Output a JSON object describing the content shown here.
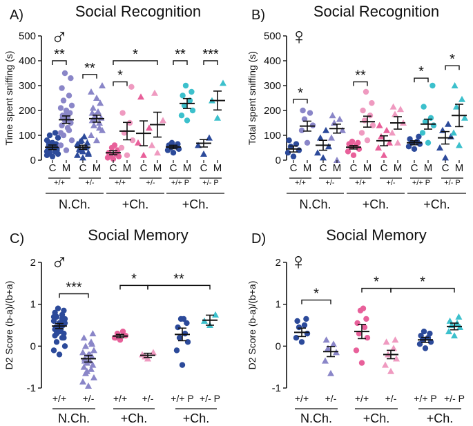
{
  "colors": {
    "navy": "#2c4a9a",
    "lavender": "#8a86c8",
    "pink": "#e8609a",
    "lightpink": "#ef9ac0",
    "cyan": "#3cc0cc",
    "black": "#111111"
  },
  "chart_data": [
    {
      "id": "A",
      "type": "scatter",
      "panel_label": "A)",
      "title": "Social Recognition",
      "sex_symbol": "♂",
      "ylabel": "Time  spent sniffing (s)",
      "ylim": [
        0,
        500
      ],
      "yticks": [
        0,
        100,
        200,
        300,
        400,
        500
      ],
      "columns": [
        {
          "label": "C",
          "shape": "circle",
          "color": "navy",
          "mean": 52,
          "sem": 9,
          "points": [
            15,
            20,
            25,
            30,
            35,
            40,
            45,
            50,
            55,
            60,
            65,
            70,
            80,
            90,
            100,
            110,
            30,
            40,
            50,
            60,
            70,
            45,
            55,
            35
          ]
        },
        {
          "label": "M",
          "shape": "circle",
          "color": "lavender",
          "mean": 163,
          "sem": 15,
          "points": [
            40,
            60,
            80,
            100,
            120,
            140,
            150,
            160,
            170,
            180,
            190,
            200,
            210,
            220,
            240,
            260,
            290,
            330,
            350,
            130,
            170,
            155,
            185,
            110
          ]
        },
        {
          "label": "C",
          "shape": "triangle",
          "color": "navy",
          "mean": 52,
          "sem": 8,
          "points": [
            10,
            20,
            30,
            40,
            50,
            60,
            70,
            80,
            95,
            45,
            55,
            35,
            65,
            25,
            75
          ]
        },
        {
          "label": "M",
          "shape": "triangle",
          "color": "lavender",
          "mean": 167,
          "sem": 14,
          "points": [
            80,
            100,
            120,
            140,
            150,
            160,
            170,
            180,
            195,
            210,
            230,
            250,
            275,
            300,
            165,
            130,
            190
          ]
        },
        {
          "label": "C",
          "shape": "circle",
          "color": "pink",
          "mean": 30,
          "sem": 8,
          "points": [
            5,
            10,
            15,
            20,
            25,
            30,
            40,
            50,
            60
          ]
        },
        {
          "label": "M",
          "shape": "circle",
          "color": "lightpink",
          "mean": 117,
          "sem": 35,
          "points": [
            20,
            50,
            80,
            110,
            150,
            190,
            295
          ]
        },
        {
          "label": "C",
          "shape": "triangle",
          "color": "pink",
          "mean": 108,
          "sem": 50,
          "points": [
            20,
            70,
            130,
            255
          ]
        },
        {
          "label": "M",
          "shape": "triangle",
          "color": "lightpink",
          "mean": 143,
          "sem": 50,
          "points": [
            30,
            60,
            160,
            270
          ]
        },
        {
          "label": "C",
          "shape": "circle",
          "color": "navy",
          "mean": 53,
          "sem": 7,
          "points": [
            30,
            40,
            45,
            50,
            55,
            60,
            65,
            70
          ]
        },
        {
          "label": "M",
          "shape": "circle",
          "color": "cyan",
          "mean": 228,
          "sem": 20,
          "points": [
            160,
            180,
            200,
            220,
            240,
            260,
            275,
            300
          ]
        },
        {
          "label": "C",
          "shape": "triangle",
          "color": "navy",
          "mean": 68,
          "sem": 15,
          "points": [
            25,
            60,
            90
          ]
        },
        {
          "label": "M",
          "shape": "triangle",
          "color": "cyan",
          "mean": 240,
          "sem": 38,
          "points": [
            170,
            240,
            310
          ]
        }
      ],
      "genotypes": [
        "+/+",
        "+/-",
        "+/+",
        "+/-",
        "+/+ P",
        "+/- P"
      ],
      "groups": [
        "N.Ch.",
        "+Ch.",
        "+Ch."
      ],
      "significance": [
        {
          "from": 0,
          "to": 1,
          "label": "**",
          "level": 400
        },
        {
          "from": 2,
          "to": 3,
          "label": "**",
          "level": 345
        },
        {
          "from": 4,
          "to": 5,
          "label": "*",
          "level": 315
        },
        {
          "from": 4,
          "to": 7,
          "label": "*",
          "level": 400
        },
        {
          "from": 8,
          "to": 9,
          "label": "**",
          "level": 400
        },
        {
          "from": 10,
          "to": 11,
          "label": "***",
          "level": 400
        }
      ]
    },
    {
      "id": "B",
      "type": "scatter",
      "panel_label": "B)",
      "title": "Social Recognition",
      "sex_symbol": "♀",
      "ylabel": "Total  spent sniffing (s)",
      "ylim": [
        0,
        500
      ],
      "yticks": [
        0,
        100,
        200,
        300,
        400,
        500
      ],
      "columns": [
        {
          "label": "C",
          "shape": "circle",
          "color": "navy",
          "mean": 45,
          "sem": 12,
          "points": [
            15,
            30,
            40,
            55,
            65,
            80
          ]
        },
        {
          "label": "M",
          "shape": "circle",
          "color": "lavender",
          "mean": 137,
          "sem": 20,
          "points": [
            70,
            120,
            140,
            165,
            190,
            200
          ]
        },
        {
          "label": "C",
          "shape": "triangle",
          "color": "navy",
          "mean": 60,
          "sem": 20,
          "points": [
            10,
            30,
            55,
            90,
            120
          ]
        },
        {
          "label": "M",
          "shape": "triangle",
          "color": "lavender",
          "mean": 127,
          "sem": 18,
          "points": [
            0,
            90,
            120,
            150,
            165,
            180
          ]
        },
        {
          "label": "C",
          "shape": "circle",
          "color": "pink",
          "mean": 52,
          "sem": 7,
          "points": [
            20,
            35,
            45,
            55,
            60,
            65,
            70,
            75
          ]
        },
        {
          "label": "M",
          "shape": "circle",
          "color": "lightpink",
          "mean": 155,
          "sem": 22,
          "points": [
            80,
            110,
            140,
            160,
            180,
            200,
            230,
            275
          ]
        },
        {
          "label": "C",
          "shape": "triangle",
          "color": "pink",
          "mean": 78,
          "sem": 20,
          "points": [
            20,
            50,
            70,
            95,
            120,
            140
          ]
        },
        {
          "label": "M",
          "shape": "triangle",
          "color": "lightpink",
          "mean": 150,
          "sem": 25,
          "points": [
            70,
            110,
            150,
            185,
            205,
            215
          ]
        },
        {
          "label": "C",
          "shape": "circle",
          "color": "navy",
          "mean": 70,
          "sem": 8,
          "points": [
            45,
            55,
            65,
            70,
            75,
            85,
            95
          ]
        },
        {
          "label": "M",
          "shape": "circle",
          "color": "cyan",
          "mean": 145,
          "sem": 20,
          "points": [
            70,
            110,
            140,
            155,
            170,
            215,
            300
          ]
        },
        {
          "label": "C",
          "shape": "triangle",
          "color": "navy",
          "mean": 90,
          "sem": 25,
          "points": [
            10,
            50,
            95,
            120,
            145
          ]
        },
        {
          "label": "M",
          "shape": "triangle",
          "color": "cyan",
          "mean": 180,
          "sem": 45,
          "points": [
            60,
            110,
            170,
            215,
            245,
            300
          ]
        }
      ],
      "genotypes": [
        "+/+",
        "+/-",
        "+/+",
        "+/-",
        "+/+ P",
        "+/- P"
      ],
      "groups": [
        "N.Ch.",
        "+Ch.",
        "+Ch."
      ],
      "significance": [
        {
          "from": 0,
          "to": 1,
          "label": "*",
          "level": 245
        },
        {
          "from": 4,
          "to": 5,
          "label": "**",
          "level": 315
        },
        {
          "from": 8,
          "to": 9,
          "label": "*",
          "level": 330
        },
        {
          "from": 10,
          "to": 11,
          "label": "*",
          "level": 380
        }
      ]
    },
    {
      "id": "C",
      "type": "scatter",
      "panel_label": "C)",
      "title": "Social Memory",
      "sex_symbol": "♂",
      "ylabel": "D2 Score (b-a)/(b+a)",
      "ylim": [
        -1,
        2
      ],
      "yticks": [
        -1,
        0,
        1,
        2
      ],
      "columns": [
        {
          "label": "+/+",
          "shape": "circle",
          "color": "navy",
          "mean": 0.48,
          "sem": 0.06,
          "points": [
            -0.2,
            -0.1,
            0.0,
            0.1,
            0.2,
            0.25,
            0.3,
            0.35,
            0.4,
            0.45,
            0.5,
            0.55,
            0.6,
            0.65,
            0.7,
            0.75,
            0.8,
            0.85,
            0.9,
            0.5,
            0.45,
            0.6,
            0.35,
            0.7,
            0.55,
            0.3,
            0.65,
            0.4,
            0.2
          ]
        },
        {
          "label": "+/-",
          "shape": "triangle",
          "color": "lavender",
          "mean": -0.3,
          "sem": 0.08,
          "points": [
            -0.95,
            -0.85,
            -0.75,
            -0.65,
            -0.55,
            -0.5,
            -0.45,
            -0.4,
            -0.35,
            -0.3,
            -0.25,
            -0.2,
            -0.15,
            -0.1,
            0.0,
            0.1,
            0.2,
            0.3,
            -0.6,
            -0.2,
            -0.35,
            0.05
          ]
        },
        {
          "label": "+/+",
          "shape": "circle",
          "color": "pink",
          "mean": 0.24,
          "sem": 0.04,
          "points": [
            0.15,
            0.2,
            0.25,
            0.3,
            0.35,
            0.2
          ]
        },
        {
          "label": "+/-",
          "shape": "triangle",
          "color": "lightpink",
          "mean": -0.22,
          "sem": 0.05,
          "points": [
            -0.3,
            -0.2,
            -0.15,
            -0.25
          ]
        },
        {
          "label": "+/+ P",
          "shape": "circle",
          "color": "navy",
          "mean": 0.28,
          "sem": 0.15,
          "points": [
            -0.45,
            -0.1,
            0.1,
            0.2,
            0.3,
            0.45,
            0.55,
            0.65,
            0.65
          ]
        },
        {
          "label": "+/- P",
          "shape": "triangle",
          "color": "cyan",
          "mean": 0.62,
          "sem": 0.12,
          "points": [
            0.5,
            0.6,
            0.75
          ]
        }
      ],
      "groups": [
        "N.Ch.",
        "+Ch.",
        "+Ch."
      ],
      "significance": [
        {
          "from": 0,
          "to": 1,
          "label": "***",
          "level": 1.25
        },
        {
          "from": 2,
          "to": 3,
          "label": "*",
          "level": 1.45
        },
        {
          "from": 3,
          "to": 5,
          "label": "**",
          "level": 1.45
        }
      ]
    },
    {
      "id": "D",
      "type": "scatter",
      "panel_label": "D)",
      "title": "Social Memory",
      "sex_symbol": "♀",
      "ylabel": "D2 Score (b-a)/(b+a)",
      "ylim": [
        -1,
        2
      ],
      "yticks": [
        -1,
        0,
        1,
        2
      ],
      "columns": [
        {
          "label": "+/+",
          "shape": "circle",
          "color": "navy",
          "mean": 0.33,
          "sem": 0.1,
          "points": [
            0.1,
            0.2,
            0.3,
            0.45,
            0.5,
            0.6,
            0.65
          ]
        },
        {
          "label": "+/-",
          "shape": "triangle",
          "color": "lavender",
          "mean": -0.13,
          "sem": 0.12,
          "points": [
            -0.65,
            -0.35,
            -0.15,
            -0.05,
            0.05,
            0.15
          ]
        },
        {
          "label": "+/+",
          "shape": "circle",
          "color": "pink",
          "mean": 0.35,
          "sem": 0.17,
          "points": [
            -0.4,
            -0.1,
            0.2,
            0.3,
            0.45,
            0.55,
            0.65,
            0.85,
            0.9
          ]
        },
        {
          "label": "+/-",
          "shape": "triangle",
          "color": "lightpink",
          "mean": -0.2,
          "sem": 0.1,
          "points": [
            -0.6,
            -0.45,
            -0.3,
            -0.2,
            -0.05,
            0.1,
            0.15
          ]
        },
        {
          "label": "+/+ P",
          "shape": "circle",
          "color": "navy",
          "mean": 0.15,
          "sem": 0.06,
          "points": [
            -0.05,
            0.05,
            0.1,
            0.15,
            0.2,
            0.25,
            0.3,
            0.35
          ]
        },
        {
          "label": "+/- P",
          "shape": "triangle",
          "color": "cyan",
          "mean": 0.47,
          "sem": 0.08,
          "points": [
            0.25,
            0.35,
            0.45,
            0.5,
            0.55,
            0.6,
            0.7
          ]
        }
      ],
      "groups": [
        "N.Ch.",
        "+Ch.",
        "+Ch."
      ],
      "significance": [
        {
          "from": 0,
          "to": 1,
          "label": "*",
          "level": 1.1
        },
        {
          "from": 2,
          "to": 3,
          "label": "*",
          "level": 1.38
        },
        {
          "from": 3,
          "to": 5,
          "label": "*",
          "level": 1.38
        }
      ]
    }
  ]
}
